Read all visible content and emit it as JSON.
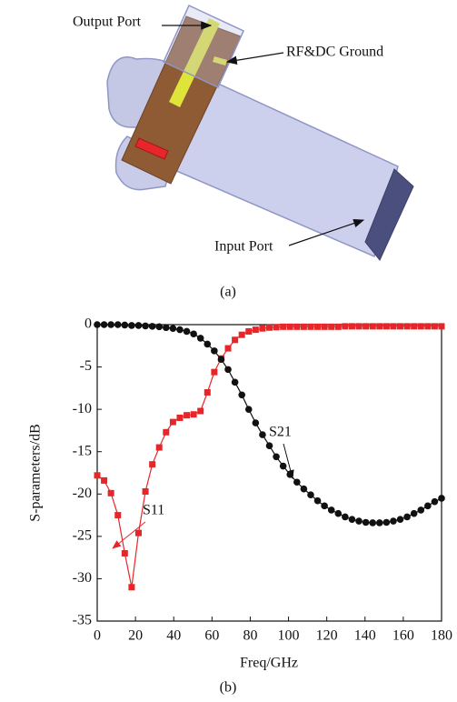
{
  "figure_a": {
    "labels": {
      "output_port": "Output Port",
      "ground": "RF&DC Ground",
      "input_port": "Input Port"
    },
    "caption": "(a)"
  },
  "figure_b_caption": "(b)",
  "chart_data": {
    "type": "line",
    "x_label": "Freq/GHz",
    "y_label": "S-parameters/dB",
    "x": [
      0,
      3.6,
      7.2,
      10.8,
      14.4,
      18,
      21.6,
      25.2,
      28.8,
      32.4,
      36,
      39.6,
      43.2,
      46.8,
      50.4,
      54,
      57.6,
      61.2,
      64.8,
      68.4,
      72,
      75.6,
      79.2,
      82.8,
      86.4,
      90,
      93.6,
      97.2,
      100.8,
      104.4,
      108,
      111.6,
      115.2,
      118.8,
      122.4,
      126,
      129.6,
      133.2,
      136.8,
      140.4,
      144,
      147.6,
      151.2,
      154.8,
      158.4,
      162,
      165.6,
      169.2,
      172.8,
      176.4,
      180
    ],
    "series": [
      {
        "name": "S11",
        "color": "#e8262a",
        "marker": "square",
        "values": [
          -17.8,
          -18.4,
          -19.9,
          -22.5,
          -27.0,
          -31.0,
          -24.6,
          -19.7,
          -16.5,
          -14.5,
          -12.7,
          -11.5,
          -11.0,
          -10.7,
          -10.6,
          -10.2,
          -8.0,
          -5.6,
          -4.0,
          -2.8,
          -1.8,
          -1.2,
          -0.8,
          -0.6,
          -0.45,
          -0.35,
          -0.3,
          -0.25,
          -0.25,
          -0.25,
          -0.25,
          -0.25,
          -0.25,
          -0.25,
          -0.25,
          -0.25,
          -0.2,
          -0.2,
          -0.2,
          -0.2,
          -0.2,
          -0.2,
          -0.2,
          -0.2,
          -0.2,
          -0.2,
          -0.2,
          -0.2,
          -0.2,
          -0.2,
          -0.2
        ]
      },
      {
        "name": "S21",
        "color": "#111111",
        "marker": "circle",
        "values": [
          0,
          0,
          0,
          0,
          -0.05,
          -0.1,
          -0.1,
          -0.15,
          -0.2,
          -0.25,
          -0.35,
          -0.45,
          -0.6,
          -0.8,
          -1.1,
          -1.6,
          -2.3,
          -3.1,
          -4.1,
          -5.3,
          -6.8,
          -8.3,
          -10.0,
          -11.6,
          -13.0,
          -14.3,
          -15.6,
          -16.7,
          -17.7,
          -18.6,
          -19.4,
          -20.1,
          -20.8,
          -21.4,
          -21.9,
          -22.3,
          -22.7,
          -23.0,
          -23.2,
          -23.35,
          -23.4,
          -23.4,
          -23.35,
          -23.2,
          -23.0,
          -22.7,
          -22.3,
          -21.9,
          -21.4,
          -20.9,
          -20.5
        ]
      }
    ],
    "xlim": [
      0,
      180
    ],
    "xticks": [
      0,
      20,
      40,
      60,
      80,
      100,
      120,
      140,
      160,
      180
    ],
    "ylim": [
      -35,
      0
    ],
    "yticks": [
      0,
      -5,
      -10,
      -15,
      -20,
      -25,
      -30,
      -35
    ]
  }
}
